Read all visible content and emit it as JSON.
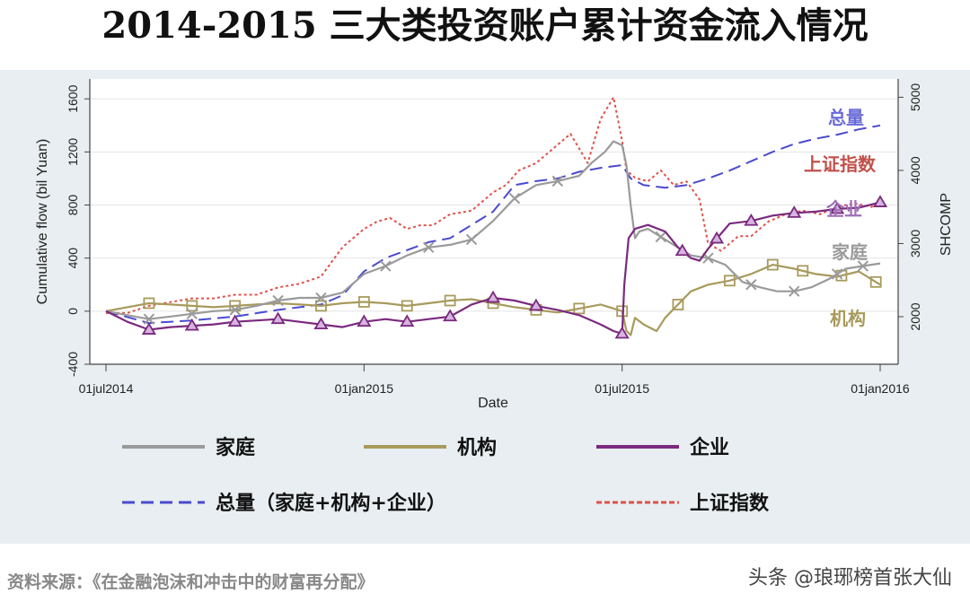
{
  "title": "2014-2015 三大类投资账户累计资金流入情况",
  "source": "资料来源：《在金融泡沫和冲击中的财富再分配》",
  "watermark": "头条 @琅琊榜首张大仙",
  "chart_data": {
    "type": "line",
    "xlabel": "Date",
    "ylabel": "Cumulative flow (bil Yuan)",
    "y2label": "SHCOMP",
    "xlim": [
      0,
      18
    ],
    "ylim": [
      -400,
      1750
    ],
    "y2lim": [
      1350,
      5250
    ],
    "x_ticks": [
      {
        "x": 0,
        "label": "01jul2014"
      },
      {
        "x": 6,
        "label": "01jan2015"
      },
      {
        "x": 12,
        "label": "01jul2015"
      },
      {
        "x": 18,
        "label": "01jan2016"
      }
    ],
    "y_ticks": [
      -400,
      0,
      400,
      800,
      1200,
      1600
    ],
    "y2_ticks": [
      2000,
      3000,
      4000,
      5000
    ],
    "grid": true,
    "series": [
      {
        "key": "jiating",
        "name": "家庭",
        "axis": "left",
        "color": "#9a9a9a",
        "style": "solid",
        "marker": "x",
        "x": [
          0,
          0.5,
          1,
          1.5,
          2,
          2.5,
          3,
          3.5,
          4,
          4.5,
          5,
          5.5,
          6,
          6.5,
          7,
          7.5,
          8,
          8.5,
          9,
          9.5,
          10,
          10.5,
          11,
          11.3,
          11.6,
          11.8,
          12,
          12.1,
          12.2,
          12.3,
          12.4,
          12.6,
          12.9,
          13.2,
          13.6,
          14,
          14.4,
          14.8,
          15.2,
          15.6,
          16,
          16.4,
          16.8,
          17.2,
          17.6,
          18
        ],
        "y": [
          0,
          -30,
          -60,
          -40,
          -20,
          0,
          10,
          40,
          80,
          100,
          100,
          140,
          280,
          340,
          420,
          480,
          500,
          540,
          680,
          850,
          950,
          980,
          1020,
          1120,
          1200,
          1280,
          1250,
          1100,
          800,
          550,
          600,
          620,
          560,
          500,
          420,
          400,
          350,
          220,
          180,
          150,
          150,
          180,
          240,
          320,
          340,
          360
        ],
        "marker_x": [
          1,
          2,
          3,
          4,
          5,
          6.5,
          7.5,
          8.5,
          9.5,
          10.5,
          12.9,
          14,
          15,
          16,
          17,
          17.6
        ]
      },
      {
        "key": "jigou",
        "name": "机构",
        "axis": "left",
        "color": "#a89a5c",
        "style": "solid",
        "marker": "square",
        "x": [
          0,
          0.5,
          1,
          1.5,
          2,
          2.5,
          3,
          3.5,
          4,
          4.5,
          5,
          5.5,
          6,
          6.5,
          7,
          7.5,
          8,
          8.5,
          9,
          9.5,
          10,
          10.5,
          11,
          11.5,
          12,
          12.1,
          12.2,
          12.3,
          12.5,
          12.8,
          13,
          13.3,
          13.6,
          14,
          14.5,
          15,
          15.5,
          16,
          16.5,
          17,
          17.5,
          18
        ],
        "y": [
          0,
          30,
          60,
          50,
          40,
          30,
          40,
          50,
          60,
          50,
          40,
          60,
          70,
          60,
          40,
          60,
          80,
          90,
          60,
          30,
          10,
          -10,
          20,
          50,
          0,
          -150,
          -180,
          -50,
          -100,
          -150,
          -50,
          50,
          150,
          200,
          230,
          280,
          350,
          320,
          280,
          260,
          300,
          200
        ],
        "marker_x": [
          1,
          2,
          3,
          5,
          6,
          7,
          8,
          9,
          10,
          11,
          12,
          13.3,
          14.5,
          15.5,
          16.2,
          17.1,
          17.9
        ]
      },
      {
        "key": "qiye",
        "name": "企业",
        "axis": "left",
        "color": "#7a2a7e",
        "style": "solid",
        "marker": "triangle",
        "x": [
          0,
          0.5,
          1,
          1.5,
          2,
          2.5,
          3,
          3.5,
          4,
          4.5,
          5,
          5.5,
          6,
          6.5,
          7,
          7.5,
          8,
          8.5,
          9,
          9.5,
          10,
          10.5,
          11,
          11.5,
          11.8,
          12,
          12.05,
          12.15,
          12.3,
          12.6,
          13,
          13.3,
          13.6,
          13.8,
          14,
          14.5,
          15,
          15.5,
          16,
          16.5,
          17,
          17.5,
          18
        ],
        "y": [
          0,
          -80,
          -140,
          -120,
          -110,
          -100,
          -80,
          -70,
          -60,
          -80,
          -100,
          -120,
          -80,
          -60,
          -80,
          -60,
          -40,
          50,
          100,
          80,
          40,
          10,
          -30,
          -100,
          -150,
          -170,
          200,
          550,
          620,
          650,
          600,
          480,
          400,
          380,
          470,
          660,
          680,
          720,
          740,
          750,
          770,
          780,
          820
        ],
        "marker_x": [
          1,
          2,
          3,
          4,
          5,
          6,
          7,
          8,
          9,
          10,
          12,
          13.4,
          14.2,
          15,
          16,
          17,
          18
        ]
      },
      {
        "key": "zongliang",
        "name": "总量（家庭+机构+企业）",
        "axis": "left",
        "color": "#4a4ad0",
        "style": "dashed",
        "x": [
          0,
          1,
          2,
          3,
          4,
          5,
          5.5,
          6,
          6.5,
          7,
          7.5,
          8,
          8.5,
          9,
          9.5,
          10,
          10.5,
          11,
          11.5,
          12,
          12.2,
          12.5,
          13,
          13.5,
          14,
          14.5,
          15,
          15.5,
          16,
          16.5,
          17,
          17.5,
          18
        ],
        "y": [
          0,
          -90,
          -70,
          -40,
          10,
          50,
          120,
          300,
          400,
          460,
          520,
          550,
          650,
          750,
          950,
          980,
          1000,
          1050,
          1080,
          1100,
          1000,
          950,
          930,
          950,
          1000,
          1060,
          1130,
          1200,
          1260,
          1300,
          1330,
          1370,
          1400
        ]
      },
      {
        "key": "shangzheng",
        "name": "上证指数",
        "axis": "right",
        "color": "#e0524a",
        "style": "dotted",
        "x": [
          0,
          0.5,
          1,
          1.5,
          2,
          2.5,
          3,
          3.5,
          4,
          4.5,
          5,
          5.5,
          6,
          6.3,
          6.6,
          7,
          7.3,
          7.6,
          8,
          8.5,
          9,
          9.3,
          9.6,
          10,
          10.4,
          10.8,
          11.2,
          11.5,
          11.8,
          12,
          12.1,
          12.3,
          12.6,
          12.9,
          13.2,
          13.5,
          13.8,
          14,
          14.3,
          14.7,
          15,
          15.4,
          15.8,
          16.2,
          16.6,
          17,
          17.4,
          17.8,
          18
        ],
        "y": [
          2050,
          2050,
          2150,
          2200,
          2250,
          2250,
          2300,
          2300,
          2400,
          2450,
          2550,
          2950,
          3200,
          3300,
          3350,
          3200,
          3250,
          3250,
          3400,
          3450,
          3700,
          3800,
          4000,
          4100,
          4300,
          4500,
          4100,
          4700,
          5000,
          4400,
          4000,
          3900,
          3850,
          4000,
          3800,
          3850,
          3600,
          3000,
          2900,
          3100,
          3100,
          3300,
          3400,
          3450,
          3400,
          3500,
          3550,
          3500,
          3600
        ]
      }
    ],
    "annotations": [
      {
        "text": "总量",
        "color": "#6a6ad8",
        "series": "zongliang"
      },
      {
        "text": "上证指数",
        "color": "#c0504a",
        "series": "shangzheng"
      },
      {
        "text": "企业",
        "color": "#a070b8",
        "series": "qiye"
      },
      {
        "text": "家庭",
        "color": "#9a9a9a",
        "series": "jiating"
      },
      {
        "text": "机构",
        "color": "#a89a5c",
        "series": "jigou"
      }
    ],
    "legend": [
      {
        "label": "家庭",
        "series": "jiating"
      },
      {
        "label": "机构",
        "series": "jigou"
      },
      {
        "label": "企业",
        "series": "qiye"
      },
      {
        "label": "总量（家庭+机构+企业）",
        "series": "zongliang"
      },
      {
        "label": "上证指数",
        "series": "shangzheng"
      }
    ],
    "legend_position": "bottom"
  }
}
